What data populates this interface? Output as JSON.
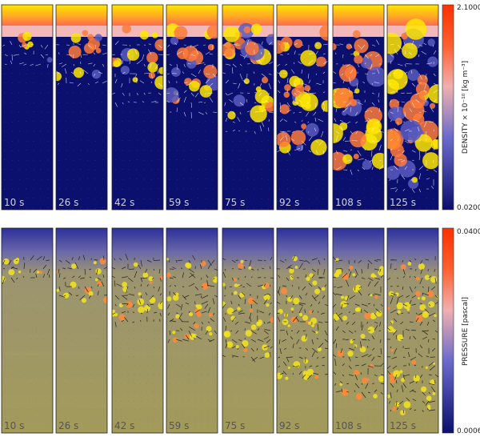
{
  "density_row": {
    "times": [
      "10 s",
      "26 s",
      "42 s",
      "59 s",
      "75 s",
      "92 s",
      "108 s",
      "125 s"
    ],
    "colorbar": {
      "label": "DENSITY × 10⁻¹⁰ [kg m⁻³]",
      "max_label": "2.1000",
      "min_label": "0.0200"
    },
    "colors": {
      "background": "#0b0f6e",
      "top_band": "#ffe600",
      "plume": "#ff7a3a",
      "vector": "#ffffff"
    }
  },
  "pressure_row": {
    "times": [
      "10 s",
      "26 s",
      "42 s",
      "59 s",
      "75 s",
      "92 s",
      "108 s",
      "125 s"
    ],
    "colorbar": {
      "label": "PRESSURE [pascal]",
      "max_label": "0.0400",
      "min_label": "0.0006"
    },
    "colors": {
      "top": "#2c2f9a",
      "bottom": "#a39b5a",
      "plume": "#f0e020",
      "vector": "#111111"
    }
  }
}
